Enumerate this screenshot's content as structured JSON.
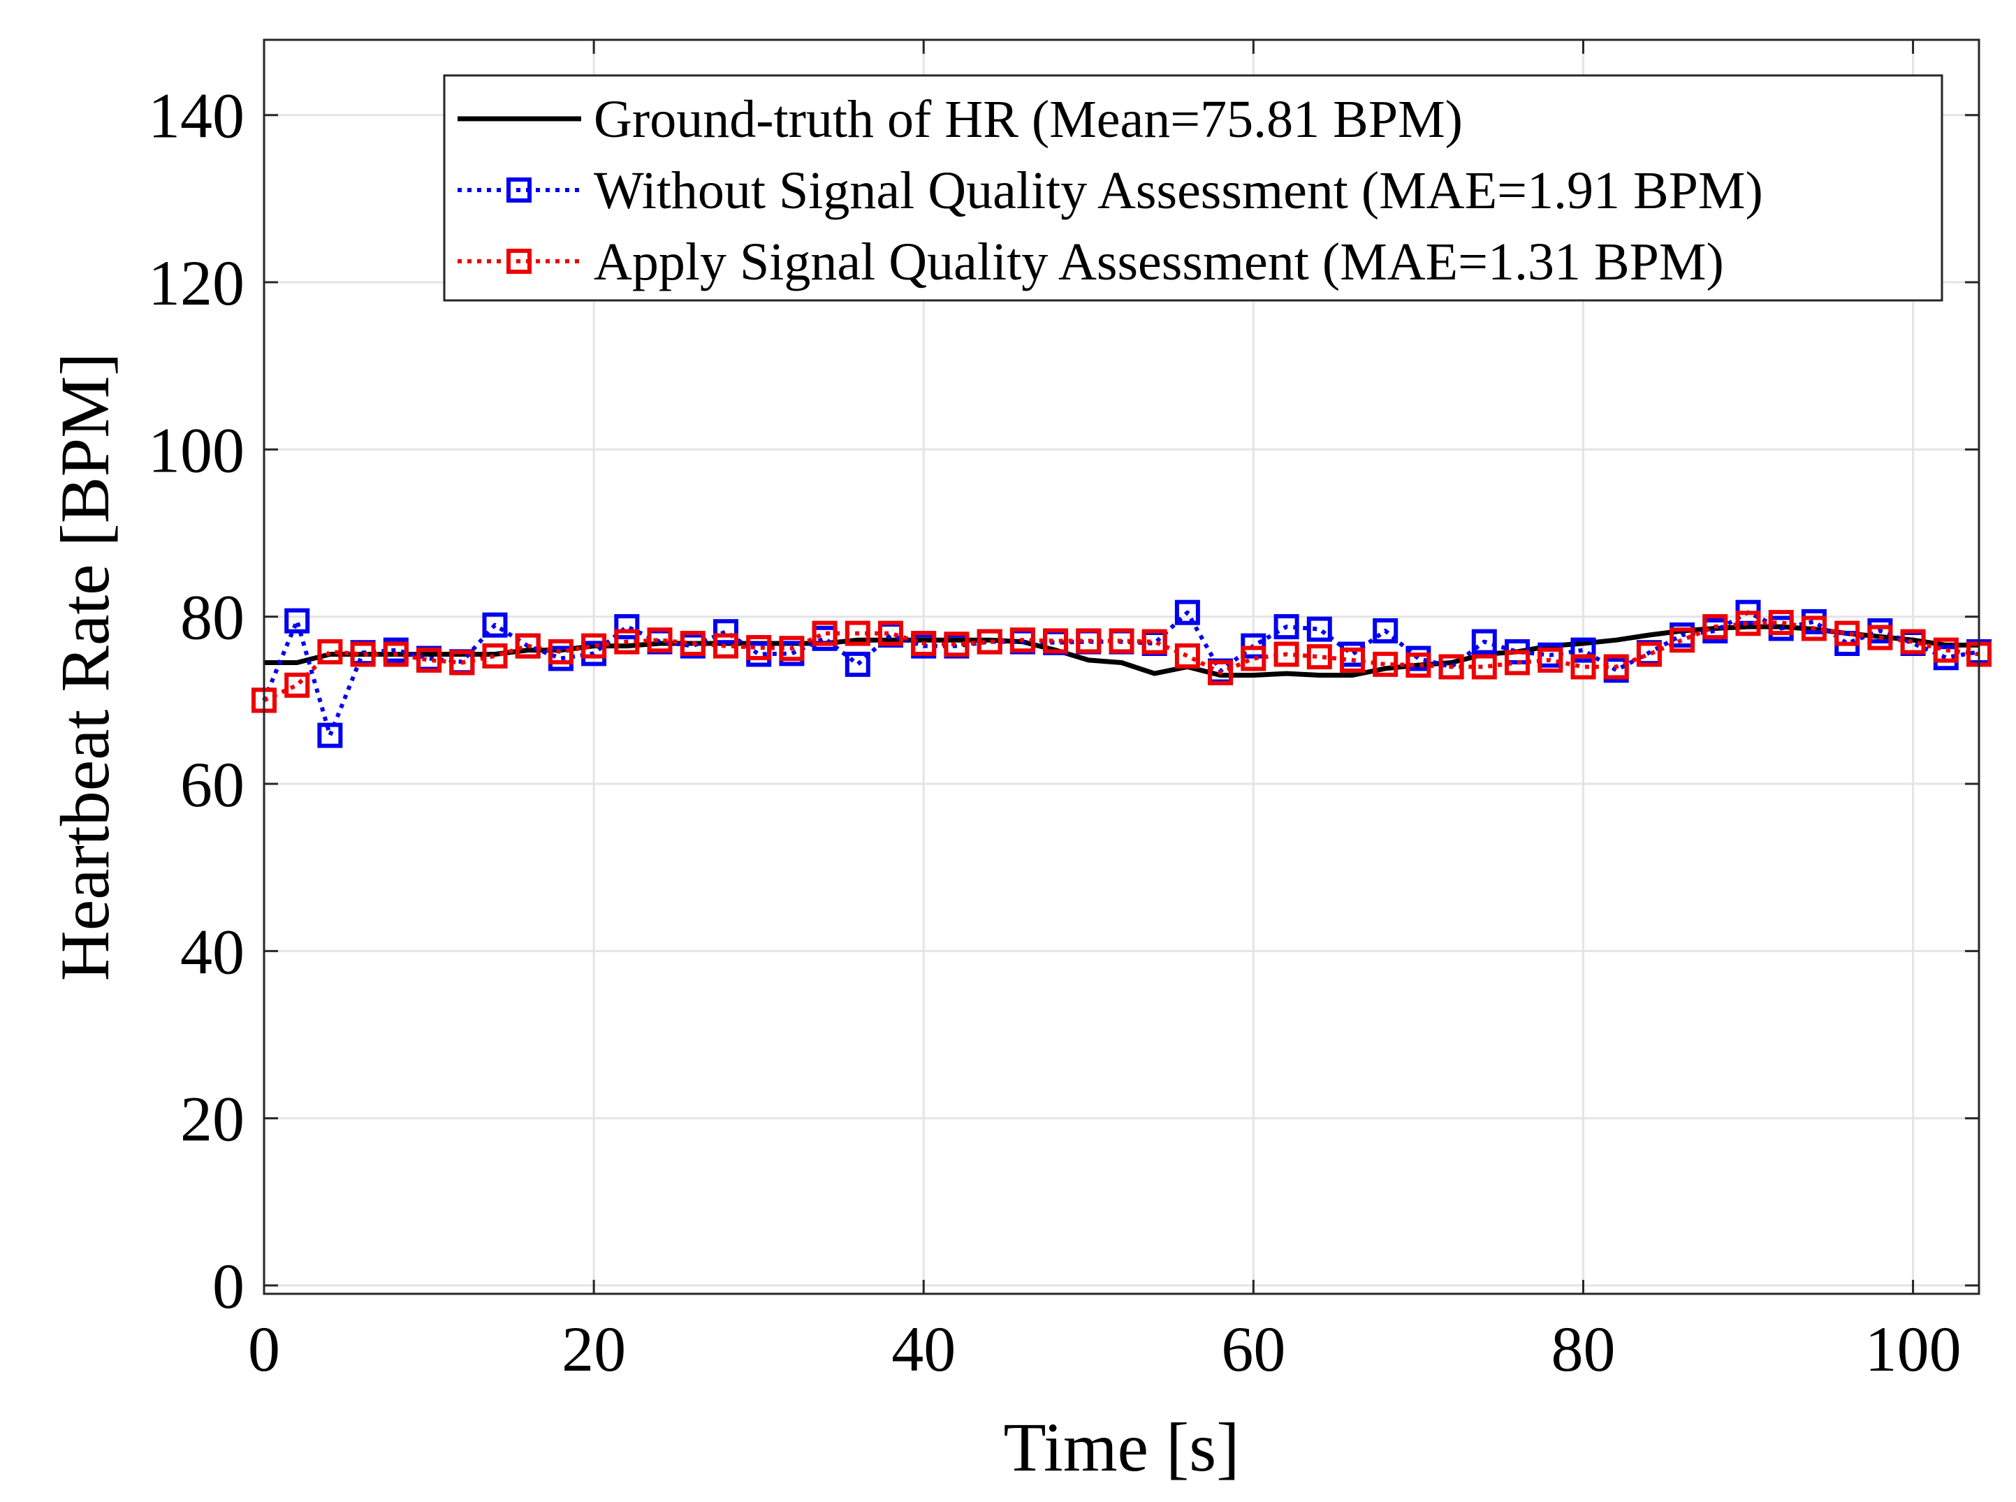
{
  "chart_data": {
    "type": "line",
    "title": "",
    "xlabel": "Time [s]",
    "ylabel": "Heartbeat Rate [BPM]",
    "xlim": [
      0,
      104
    ],
    "ylim": [
      -1,
      149
    ],
    "xticks": [
      0,
      20,
      40,
      60,
      80,
      100
    ],
    "yticks": [
      0,
      20,
      40,
      60,
      80,
      100,
      120,
      140
    ],
    "grid": true,
    "legend_position": "top-right",
    "series": [
      {
        "name": "Ground-truth of HR (Mean=75.81 BPM)",
        "style": "solid",
        "marker": "none",
        "color": "#000000",
        "x": [
          0,
          2,
          4,
          6,
          8,
          10,
          12,
          14,
          16,
          18,
          20,
          22,
          24,
          26,
          28,
          30,
          32,
          34,
          36,
          38,
          40,
          42,
          44,
          46,
          48,
          50,
          52,
          54,
          56,
          58,
          60,
          62,
          64,
          66,
          68,
          70,
          72,
          74,
          76,
          78,
          80,
          82,
          84,
          86,
          88,
          90,
          92,
          94,
          96,
          98,
          100,
          102,
          104
        ],
        "y": [
          74.5,
          74.5,
          75.5,
          75.5,
          75.5,
          75.5,
          75.5,
          75.5,
          76.0,
          76.0,
          76.5,
          76.5,
          76.8,
          76.8,
          76.8,
          76.8,
          76.8,
          76.8,
          77.2,
          77.2,
          77.2,
          77.2,
          77.2,
          77.0,
          76.0,
          74.8,
          74.5,
          73.2,
          74.0,
          73.0,
          73.0,
          73.2,
          73.0,
          73.0,
          73.8,
          74.2,
          74.5,
          75.5,
          75.8,
          76.5,
          76.8,
          77.2,
          77.8,
          78.3,
          78.6,
          78.8,
          78.8,
          78.5,
          78.0,
          77.6,
          77.2,
          76.6,
          76.6
        ]
      },
      {
        "name": "Without Signal Quality Assessment (MAE=1.91 BPM)",
        "style": "dotted",
        "marker": "square",
        "color": "#0000ee",
        "x": [
          0,
          2,
          4,
          6,
          8,
          10,
          12,
          14,
          16,
          18,
          20,
          22,
          24,
          26,
          28,
          30,
          32,
          34,
          36,
          38,
          40,
          42,
          44,
          46,
          48,
          50,
          52,
          54,
          56,
          58,
          60,
          62,
          64,
          66,
          68,
          70,
          72,
          74,
          76,
          78,
          80,
          82,
          84,
          86,
          88,
          90,
          92,
          94,
          96,
          98,
          100,
          102,
          104
        ],
        "y": [
          70.0,
          79.5,
          65.8,
          75.7,
          76.0,
          75.0,
          74.6,
          79.0,
          76.5,
          75.0,
          75.6,
          78.8,
          77.0,
          76.5,
          78.2,
          75.5,
          75.6,
          77.4,
          74.3,
          77.8,
          76.5,
          76.5,
          77.0,
          77.0,
          76.9,
          77.0,
          77.0,
          76.8,
          80.5,
          73.5,
          76.5,
          78.8,
          78.5,
          75.5,
          78.3,
          75.0,
          74.0,
          77.0,
          75.8,
          75.4,
          76.0,
          73.6,
          75.7,
          77.8,
          78.3,
          80.5,
          78.6,
          79.4,
          76.8,
          78.3,
          76.8,
          75.1,
          75.8
        ]
      },
      {
        "name": "Apply Signal Quality Assessment (MAE=1.31 BPM)",
        "style": "dotted",
        "marker": "square",
        "color": "#ee0000",
        "x": [
          0,
          2,
          4,
          6,
          8,
          10,
          12,
          14,
          16,
          18,
          20,
          22,
          24,
          26,
          28,
          30,
          32,
          34,
          36,
          38,
          40,
          42,
          44,
          46,
          48,
          50,
          52,
          54,
          56,
          58,
          60,
          62,
          64,
          66,
          68,
          70,
          72,
          74,
          76,
          78,
          80,
          82,
          84,
          86,
          88,
          90,
          92,
          94,
          96,
          98,
          100,
          102,
          104
        ],
        "y": [
          70.0,
          71.8,
          75.8,
          75.5,
          75.5,
          74.8,
          74.5,
          75.3,
          76.5,
          75.8,
          76.5,
          77.0,
          77.2,
          76.8,
          76.5,
          76.3,
          76.2,
          78.0,
          78.0,
          78.0,
          76.8,
          76.7,
          77.0,
          77.2,
          77.1,
          77.1,
          77.1,
          77.0,
          75.3,
          73.3,
          75.0,
          75.5,
          75.2,
          74.8,
          74.3,
          74.2,
          74.0,
          74.0,
          74.5,
          74.8,
          74.0,
          74.0,
          75.5,
          77.2,
          78.8,
          79.2,
          79.3,
          78.6,
          78.0,
          77.5,
          77.0,
          76.0,
          75.5
        ]
      }
    ]
  }
}
